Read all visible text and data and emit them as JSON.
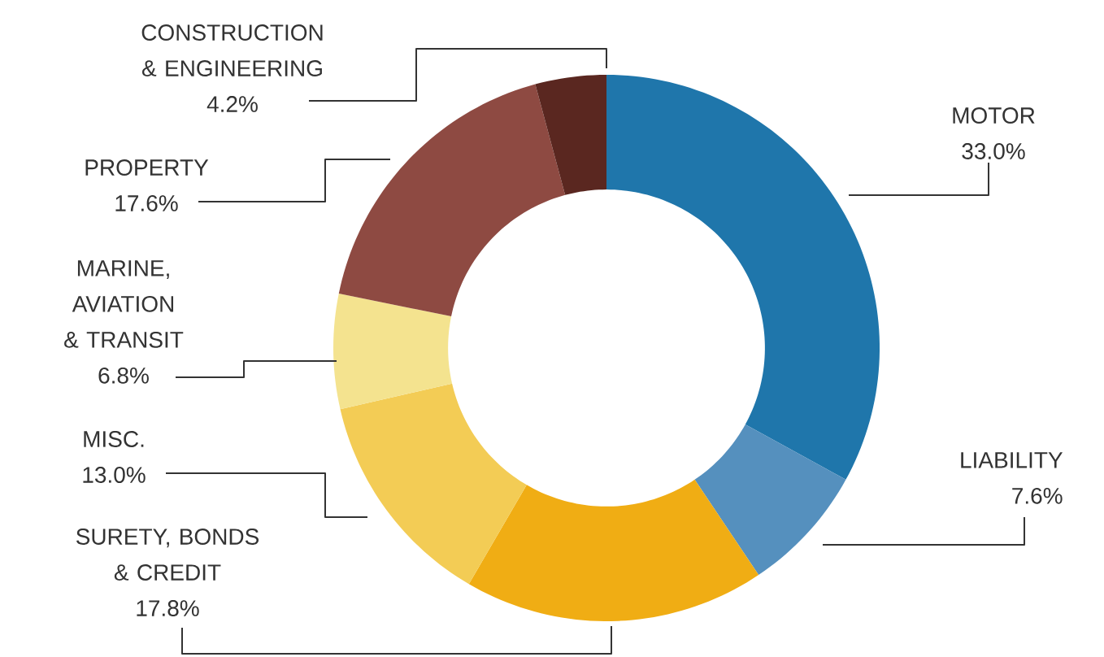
{
  "chart_data": {
    "type": "donut",
    "categories": [
      "MOTOR",
      "LIABILITY",
      "SURETY, BONDS & CREDIT",
      "MISC.",
      "MARINE, AVIATION & TRANSIT",
      "PROPERTY",
      "CONSTRUCTION & ENGINEERING"
    ],
    "values": [
      33.0,
      7.6,
      17.8,
      13.0,
      6.8,
      17.6,
      4.2
    ],
    "value_labels": [
      "33.0%",
      "7.6%",
      "17.8%",
      "13.0%",
      "6.8%",
      "17.6%",
      "4.2%"
    ],
    "colors": [
      "#1f76ab",
      "#5590be",
      "#f0ad14",
      "#f3cc55",
      "#f4e38f",
      "#8e4a42",
      "#5a2720"
    ]
  }
}
